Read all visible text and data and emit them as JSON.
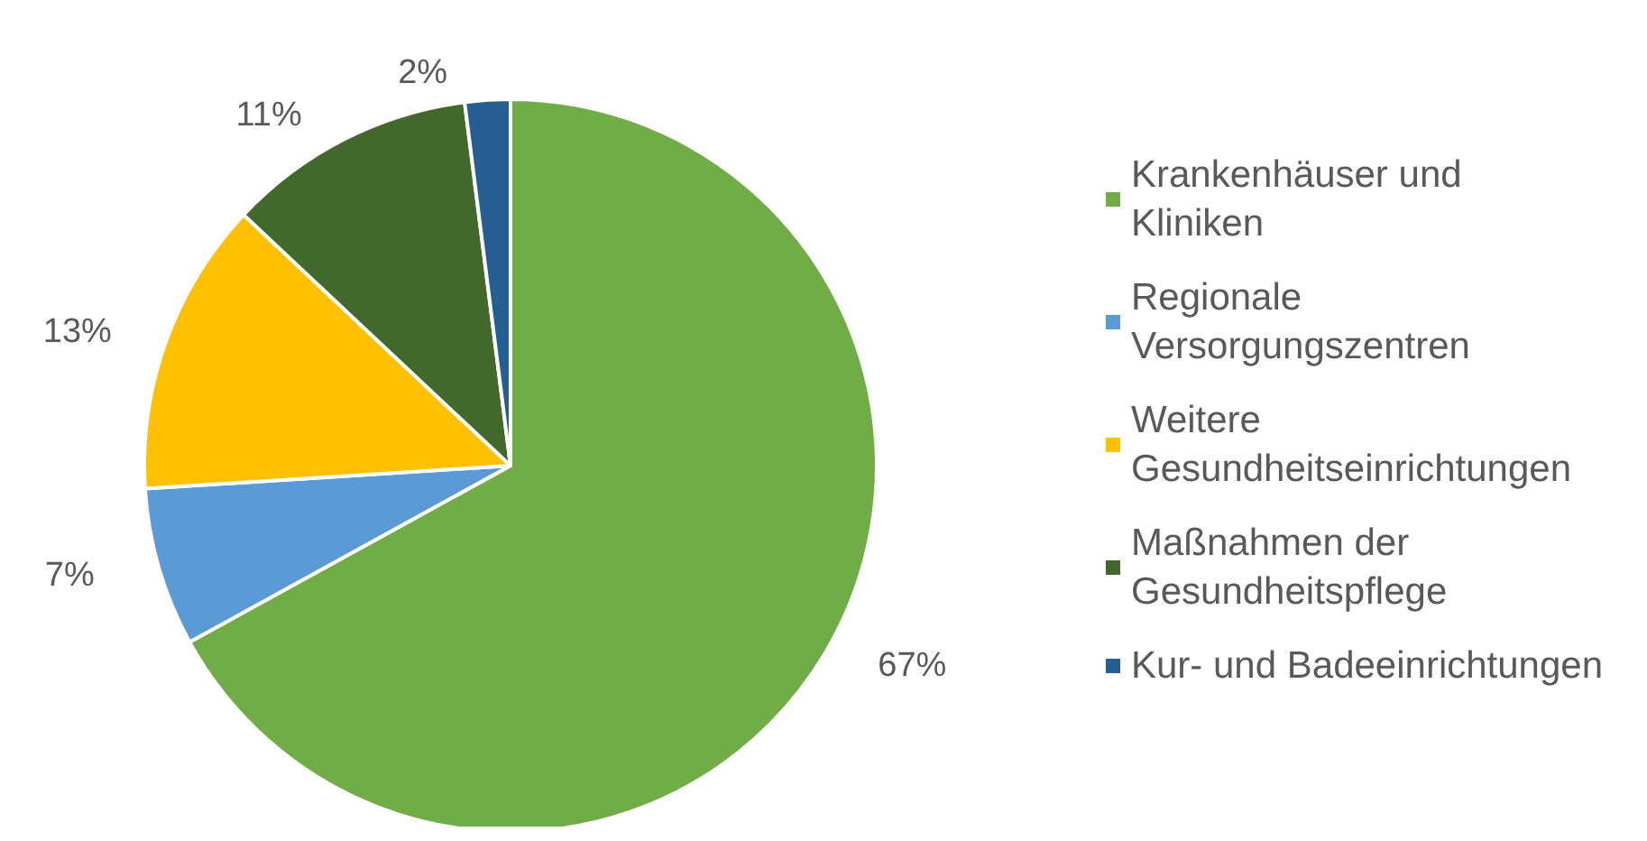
{
  "chart_data": {
    "type": "pie",
    "categories": [
      "Krankenhäuser und Kliniken",
      "Regionale Versorgungszentren",
      "Weitere Gesundheitseinrichtungen",
      "Maßnahmen der Gesundheitspflege",
      "Kur- und Badeeinrichtungen"
    ],
    "values": [
      67,
      7,
      13,
      11,
      2
    ],
    "colors": [
      "#70ad47",
      "#5b9bd5",
      "#ffc000",
      "#43682b",
      "#255e91"
    ],
    "value_labels": [
      "67%",
      "7%",
      "13%",
      "11%",
      "2%"
    ],
    "legend": "right"
  }
}
